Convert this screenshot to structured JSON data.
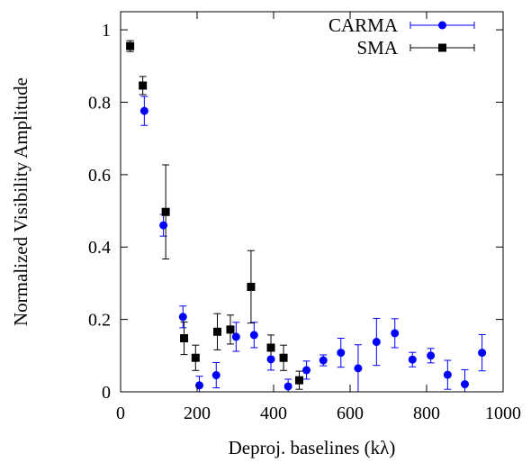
{
  "chart_data": {
    "type": "scatter",
    "title": "",
    "xlabel": "Deproj. baselines (kλ)",
    "ylabel": "Normalized Visibility Amplitude",
    "xlim": [
      0,
      1000
    ],
    "ylim": [
      0,
      1.05
    ],
    "xticks": [
      0,
      200,
      400,
      600,
      800,
      1000
    ],
    "yticks": [
      0,
      0.2,
      0.4,
      0.6,
      0.8,
      1
    ],
    "xtick_labels": [
      "0",
      "200",
      "400",
      "600",
      "800",
      "1000"
    ],
    "ytick_labels": [
      "0",
      "0.2",
      "0.4",
      "0.6",
      "0.8",
      "1"
    ],
    "grid": false,
    "legend_position": "top-right",
    "series": [
      {
        "name": "CARMA",
        "marker": "circle",
        "color": "#0000ff",
        "errorbar_color": "#0000ff",
        "points": [
          {
            "x": 62,
            "y": 0.776,
            "err": 0.04
          },
          {
            "x": 112,
            "y": 0.46,
            "err": 0.03
          },
          {
            "x": 163,
            "y": 0.207,
            "err": 0.03
          },
          {
            "x": 206,
            "y": 0.018,
            "err": 0.025
          },
          {
            "x": 250,
            "y": 0.046,
            "err": 0.035
          },
          {
            "x": 302,
            "y": 0.152,
            "err": 0.04
          },
          {
            "x": 349,
            "y": 0.157,
            "err": 0.035
          },
          {
            "x": 393,
            "y": 0.09,
            "err": 0.03
          },
          {
            "x": 438,
            "y": 0.015,
            "err": 0.02
          },
          {
            "x": 486,
            "y": 0.06,
            "err": 0.025
          },
          {
            "x": 530,
            "y": 0.087,
            "err": 0.015
          },
          {
            "x": 576,
            "y": 0.108,
            "err": 0.04
          },
          {
            "x": 621,
            "y": 0.065,
            "err": 0.065
          },
          {
            "x": 669,
            "y": 0.138,
            "err": 0.065
          },
          {
            "x": 717,
            "y": 0.162,
            "err": 0.04
          },
          {
            "x": 763,
            "y": 0.089,
            "err": 0.02
          },
          {
            "x": 811,
            "y": 0.1,
            "err": 0.02
          },
          {
            "x": 855,
            "y": 0.047,
            "err": 0.04
          },
          {
            "x": 900,
            "y": 0.021,
            "err": 0.04
          },
          {
            "x": 945,
            "y": 0.108,
            "err": 0.05
          }
        ]
      },
      {
        "name": "SMA",
        "marker": "square",
        "color": "#000000",
        "errorbar_color": "#000000",
        "points": [
          {
            "x": 25,
            "y": 0.955,
            "err": 0.015
          },
          {
            "x": 58,
            "y": 0.846,
            "err": 0.025
          },
          {
            "x": 118,
            "y": 0.497,
            "err": 0.13
          },
          {
            "x": 166,
            "y": 0.148,
            "err": 0.045
          },
          {
            "x": 196,
            "y": 0.094,
            "err": 0.035
          },
          {
            "x": 253,
            "y": 0.166,
            "err": 0.05
          },
          {
            "x": 287,
            "y": 0.172,
            "err": 0.04
          },
          {
            "x": 341,
            "y": 0.29,
            "err": 0.1
          },
          {
            "x": 393,
            "y": 0.122,
            "err": 0.035
          },
          {
            "x": 426,
            "y": 0.094,
            "err": 0.035
          },
          {
            "x": 467,
            "y": 0.032,
            "err": 0.025
          }
        ]
      }
    ]
  }
}
